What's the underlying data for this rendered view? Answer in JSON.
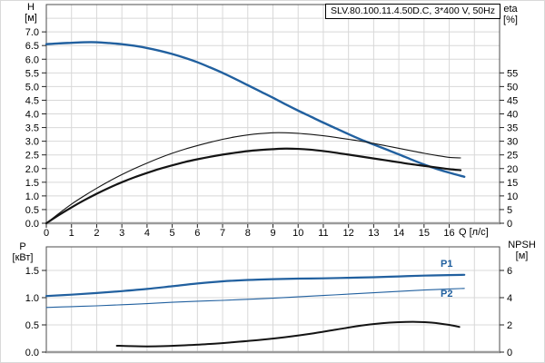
{
  "title_box": {
    "text": "SLV.80.100.11.4.50D.C, 3*400 V, 50Hz"
  },
  "labels": {
    "h_name": "H",
    "h_unit": "[м]",
    "eta_name": "eta",
    "eta_unit": "[%]",
    "p_name": "P",
    "p_unit": "[кВт]",
    "npsh_name": "NPSH",
    "npsh_unit": "[м]",
    "q_axis": "Q [л/с]",
    "p1": "P1",
    "p2": "P2"
  },
  "colors": {
    "curve_blue": "#21609f",
    "curve_black": "#141414",
    "grid": "#d8d8d8",
    "border": "#4d4d4d",
    "axis": "#9b9b9b",
    "tick": "#222222"
  },
  "chart_data": [
    {
      "type": "line",
      "title": "SLV.80.100.11.4.50D.C, 3*400 V, 50Hz",
      "xlabel": "Q [л/с]",
      "xlim": [
        0,
        18
      ],
      "x_ticks": [
        [
          0,
          "0"
        ],
        [
          1,
          "1"
        ],
        [
          2,
          "2"
        ],
        [
          3,
          "3"
        ],
        [
          4,
          "4"
        ],
        [
          5,
          "5"
        ],
        [
          6,
          "6"
        ],
        [
          7,
          "7"
        ],
        [
          8,
          "8"
        ],
        [
          9,
          "9"
        ],
        [
          10,
          "10"
        ],
        [
          11,
          "11"
        ],
        [
          12,
          "12"
        ],
        [
          13,
          "13"
        ],
        [
          14,
          "14"
        ],
        [
          15,
          "15"
        ],
        [
          16,
          "16"
        ]
      ],
      "grid": true,
      "y_left": {
        "label": "H [м]",
        "lim": [
          0,
          8
        ],
        "grid_step": 0.5,
        "ticks": [
          [
            0,
            "0.0"
          ],
          [
            0.5,
            "0.5"
          ],
          [
            1,
            "1.0"
          ],
          [
            1.5,
            "1.5"
          ],
          [
            2,
            "2.0"
          ],
          [
            2.5,
            "2.5"
          ],
          [
            3,
            "3.0"
          ],
          [
            3.5,
            "3.5"
          ],
          [
            4,
            "4.0"
          ],
          [
            4.5,
            "4.5"
          ],
          [
            5,
            "5.0"
          ],
          [
            5.5,
            "5.5"
          ],
          [
            6,
            "6.0"
          ],
          [
            6.5,
            "6.5"
          ],
          [
            7,
            "7.0"
          ]
        ]
      },
      "y_right": {
        "label": "eta [%]",
        "lim": [
          0,
          80
        ],
        "ticks": [
          [
            0,
            "0"
          ],
          [
            5,
            "5"
          ],
          [
            10,
            "10"
          ],
          [
            15,
            "15"
          ],
          [
            20,
            "20"
          ],
          [
            25,
            "25"
          ],
          [
            30,
            "30"
          ],
          [
            35,
            "35"
          ],
          [
            40,
            "40"
          ],
          [
            45,
            "45"
          ],
          [
            50,
            "50"
          ],
          [
            55,
            "55"
          ]
        ]
      },
      "series": [
        {
          "name": "head-curve",
          "axis": "left",
          "color": "#21609f",
          "width": 2.4,
          "points": [
            [
              0,
              6.55
            ],
            [
              0.5,
              6.58
            ],
            [
              1,
              6.6
            ],
            [
              1.5,
              6.62
            ],
            [
              2,
              6.62
            ],
            [
              2.5,
              6.59
            ],
            [
              3,
              6.55
            ],
            [
              3.5,
              6.49
            ],
            [
              4,
              6.41
            ],
            [
              4.5,
              6.31
            ],
            [
              5,
              6.19
            ],
            [
              5.5,
              6.05
            ],
            [
              6,
              5.89
            ],
            [
              6.5,
              5.7
            ],
            [
              7,
              5.5
            ],
            [
              7.5,
              5.28
            ],
            [
              8,
              5.05
            ],
            [
              8.5,
              4.82
            ],
            [
              9,
              4.59
            ],
            [
              9.5,
              4.35
            ],
            [
              10,
              4.12
            ],
            [
              10.5,
              3.9
            ],
            [
              11,
              3.68
            ],
            [
              11.5,
              3.47
            ],
            [
              12,
              3.26
            ],
            [
              12.5,
              3.06
            ],
            [
              13,
              2.88
            ],
            [
              13.5,
              2.7
            ],
            [
              14,
              2.52
            ],
            [
              14.5,
              2.33
            ],
            [
              15,
              2.15
            ],
            [
              15.5,
              1.99
            ],
            [
              16,
              1.85
            ],
            [
              16.6,
              1.7
            ]
          ]
        },
        {
          "name": "eta-pump-curve",
          "axis": "right",
          "color": "#141414",
          "width": 1.1,
          "points": [
            [
              0,
              0
            ],
            [
              0.5,
              3.6
            ],
            [
              1,
              7
            ],
            [
              1.5,
              10
            ],
            [
              2,
              12.8
            ],
            [
              2.5,
              15.4
            ],
            [
              3,
              17.8
            ],
            [
              3.5,
              20
            ],
            [
              4,
              22
            ],
            [
              4.5,
              23.9
            ],
            [
              5,
              25.6
            ],
            [
              5.5,
              27.1
            ],
            [
              6,
              28.4
            ],
            [
              6.5,
              29.6
            ],
            [
              7,
              30.7
            ],
            [
              7.5,
              31.6
            ],
            [
              8,
              32.3
            ],
            [
              8.5,
              32.8
            ],
            [
              9,
              33.1
            ],
            [
              9.5,
              33.1
            ],
            [
              10,
              32.9
            ],
            [
              10.5,
              32.5
            ],
            [
              11,
              32
            ],
            [
              11.5,
              31.4
            ],
            [
              12,
              30.7
            ],
            [
              12.5,
              30
            ],
            [
              13,
              29.2
            ],
            [
              13.5,
              28.3
            ],
            [
              14,
              27.4
            ],
            [
              14.5,
              26.5
            ],
            [
              15,
              25.6
            ],
            [
              15.5,
              24.8
            ],
            [
              16,
              24.1
            ],
            [
              16.45,
              23.9
            ]
          ]
        },
        {
          "name": "eta-total-curve",
          "axis": "right",
          "color": "#141414",
          "width": 2.2,
          "points": [
            [
              0,
              0
            ],
            [
              0.5,
              3
            ],
            [
              1,
              5.8
            ],
            [
              1.5,
              8.4
            ],
            [
              2,
              10.8
            ],
            [
              2.5,
              13
            ],
            [
              3,
              15
            ],
            [
              3.5,
              16.8
            ],
            [
              4,
              18.4
            ],
            [
              4.5,
              19.9
            ],
            [
              5,
              21.2
            ],
            [
              5.5,
              22.4
            ],
            [
              6,
              23.4
            ],
            [
              6.5,
              24.3
            ],
            [
              7,
              25.1
            ],
            [
              7.5,
              25.8
            ],
            [
              8,
              26.4
            ],
            [
              8.5,
              26.8
            ],
            [
              9,
              27.1
            ],
            [
              9.5,
              27.3
            ],
            [
              10,
              27.2
            ],
            [
              10.5,
              26.9
            ],
            [
              11,
              26.4
            ],
            [
              11.5,
              25.8
            ],
            [
              12,
              25.1
            ],
            [
              12.5,
              24.4
            ],
            [
              13,
              23.7
            ],
            [
              13.5,
              23
            ],
            [
              14,
              22.3
            ],
            [
              14.5,
              21.6
            ],
            [
              15,
              21
            ],
            [
              15.5,
              20.4
            ],
            [
              16,
              19.8
            ],
            [
              16.45,
              19.4
            ]
          ]
        }
      ]
    },
    {
      "type": "line",
      "title": "",
      "xlabel": "",
      "xlim": [
        0,
        18
      ],
      "x_ticks": [],
      "grid": true,
      "y_left": {
        "label": "P [кВт]",
        "lim": [
          0,
          1.9333
        ],
        "grid_step": 0.5,
        "ticks": [
          [
            0,
            "0.0"
          ],
          [
            0.5,
            "0.5"
          ],
          [
            1,
            "1.0"
          ],
          [
            1.5,
            "1.5"
          ]
        ]
      },
      "y_right": {
        "label": "NPSH [м]",
        "lim": [
          0,
          7.7333
        ],
        "ticks": [
          [
            0,
            "0"
          ],
          [
            2,
            "2"
          ],
          [
            4,
            "4"
          ],
          [
            6,
            "6"
          ]
        ]
      },
      "series": [
        {
          "name": "p1-curve",
          "axis": "left",
          "color": "#21609f",
          "width": 2.2,
          "label": "P1",
          "points": [
            [
              0,
              1.03
            ],
            [
              1,
              1.055
            ],
            [
              2,
              1.085
            ],
            [
              3,
              1.12
            ],
            [
              4,
              1.16
            ],
            [
              5,
              1.21
            ],
            [
              6,
              1.26
            ],
            [
              7,
              1.3
            ],
            [
              8,
              1.325
            ],
            [
              9,
              1.34
            ],
            [
              10,
              1.35
            ],
            [
              11,
              1.355
            ],
            [
              12,
              1.365
            ],
            [
              13,
              1.375
            ],
            [
              14,
              1.39
            ],
            [
              15,
              1.405
            ],
            [
              16,
              1.415
            ],
            [
              16.6,
              1.42
            ]
          ]
        },
        {
          "name": "p2-curve",
          "axis": "left",
          "color": "#21609f",
          "width": 1.1,
          "label": "P2",
          "points": [
            [
              0,
              0.82
            ],
            [
              1,
              0.835
            ],
            [
              2,
              0.85
            ],
            [
              3,
              0.87
            ],
            [
              4,
              0.89
            ],
            [
              5,
              0.915
            ],
            [
              6,
              0.935
            ],
            [
              7,
              0.95
            ],
            [
              8,
              0.97
            ],
            [
              9,
              0.99
            ],
            [
              10,
              1.015
            ],
            [
              11,
              1.04
            ],
            [
              12,
              1.065
            ],
            [
              13,
              1.09
            ],
            [
              14,
              1.115
            ],
            [
              15,
              1.14
            ],
            [
              16,
              1.16
            ],
            [
              16.6,
              1.17
            ]
          ]
        },
        {
          "name": "npsh-curve",
          "axis": "right",
          "color": "#141414",
          "width": 2.0,
          "points": [
            [
              2.8,
              0.47
            ],
            [
              3.3,
              0.44
            ],
            [
              4,
              0.42
            ],
            [
              4.7,
              0.44
            ],
            [
              5.5,
              0.5
            ],
            [
              6.5,
              0.6
            ],
            [
              7.5,
              0.74
            ],
            [
              8.5,
              0.9
            ],
            [
              9.5,
              1.1
            ],
            [
              10.5,
              1.35
            ],
            [
              11.5,
              1.65
            ],
            [
              12.5,
              1.95
            ],
            [
              13.3,
              2.12
            ],
            [
              14,
              2.2
            ],
            [
              14.7,
              2.22
            ],
            [
              15.3,
              2.17
            ],
            [
              16,
              2.0
            ],
            [
              16.4,
              1.85
            ]
          ]
        }
      ]
    }
  ]
}
